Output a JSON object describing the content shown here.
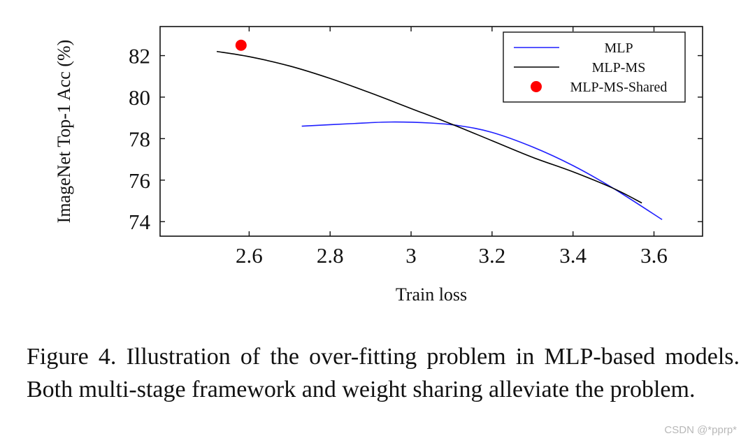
{
  "chart_data": {
    "type": "line",
    "xlabel": "Train loss",
    "ylabel": "ImageNet Top-1 Acc (%)",
    "xlim": [
      2.38,
      3.72
    ],
    "ylim": [
      73.3,
      83.4
    ],
    "xticks": [
      2.6,
      2.8,
      3,
      3.2,
      3.4,
      3.6
    ],
    "xtick_labels": [
      "2.6",
      "2.8",
      "3",
      "3.2",
      "3.4",
      "3.6"
    ],
    "yticks": [
      74,
      76,
      78,
      80,
      82
    ],
    "ytick_labels": [
      "74",
      "76",
      "78",
      "80",
      "82"
    ],
    "legend_position": "top-right",
    "series": [
      {
        "name": "MLP",
        "kind": "line",
        "color": "#1f1fff",
        "x": [
          2.73,
          2.85,
          2.95,
          3.05,
          3.12,
          3.2,
          3.3,
          3.4,
          3.5,
          3.62
        ],
        "y": [
          78.6,
          78.72,
          78.8,
          78.75,
          78.62,
          78.3,
          77.6,
          76.7,
          75.6,
          74.1
        ]
      },
      {
        "name": "MLP-MS",
        "kind": "line",
        "color": "#000000",
        "x": [
          2.52,
          2.6,
          2.7,
          2.8,
          2.9,
          3.0,
          3.1,
          3.2,
          3.3,
          3.4,
          3.5,
          3.57
        ],
        "y": [
          82.2,
          81.95,
          81.5,
          80.9,
          80.2,
          79.45,
          78.7,
          77.9,
          77.1,
          76.4,
          75.6,
          74.9
        ]
      },
      {
        "name": "MLP-MS-Shared",
        "kind": "scatter",
        "color": "#ff0000",
        "x": [
          2.58
        ],
        "y": [
          82.5
        ]
      }
    ]
  },
  "caption": "Figure 4.  Illustration of the over-fitting problem in MLP-based models. Both multi-stage framework and weight sharing alleviate the problem.",
  "watermark": "CSDN @*pprp*"
}
